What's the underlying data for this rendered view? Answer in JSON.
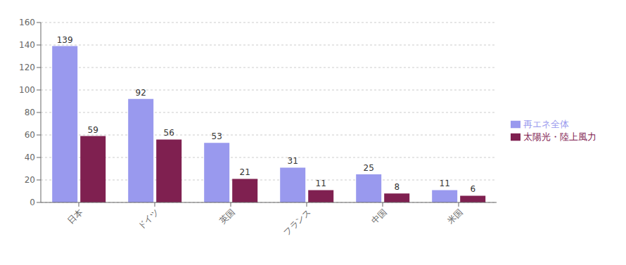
{
  "chart_data": {
    "type": "bar",
    "categories": [
      "日本",
      "ドイツ",
      "英国",
      "フランス",
      "中国",
      "米国"
    ],
    "series": [
      {
        "name": "再エネ全体",
        "color": "#9999ee",
        "values": [
          139,
          92,
          53,
          31,
          25,
          11
        ]
      },
      {
        "name": "太陽光・陸上風力",
        "color": "#7f2050",
        "values": [
          59,
          56,
          21,
          11,
          8,
          6
        ]
      }
    ],
    "ylim": [
      0,
      160
    ],
    "yticks": [
      0,
      20,
      40,
      60,
      80,
      100,
      120,
      140,
      160
    ],
    "grid": true,
    "data_labels": true,
    "legend": "right"
  }
}
